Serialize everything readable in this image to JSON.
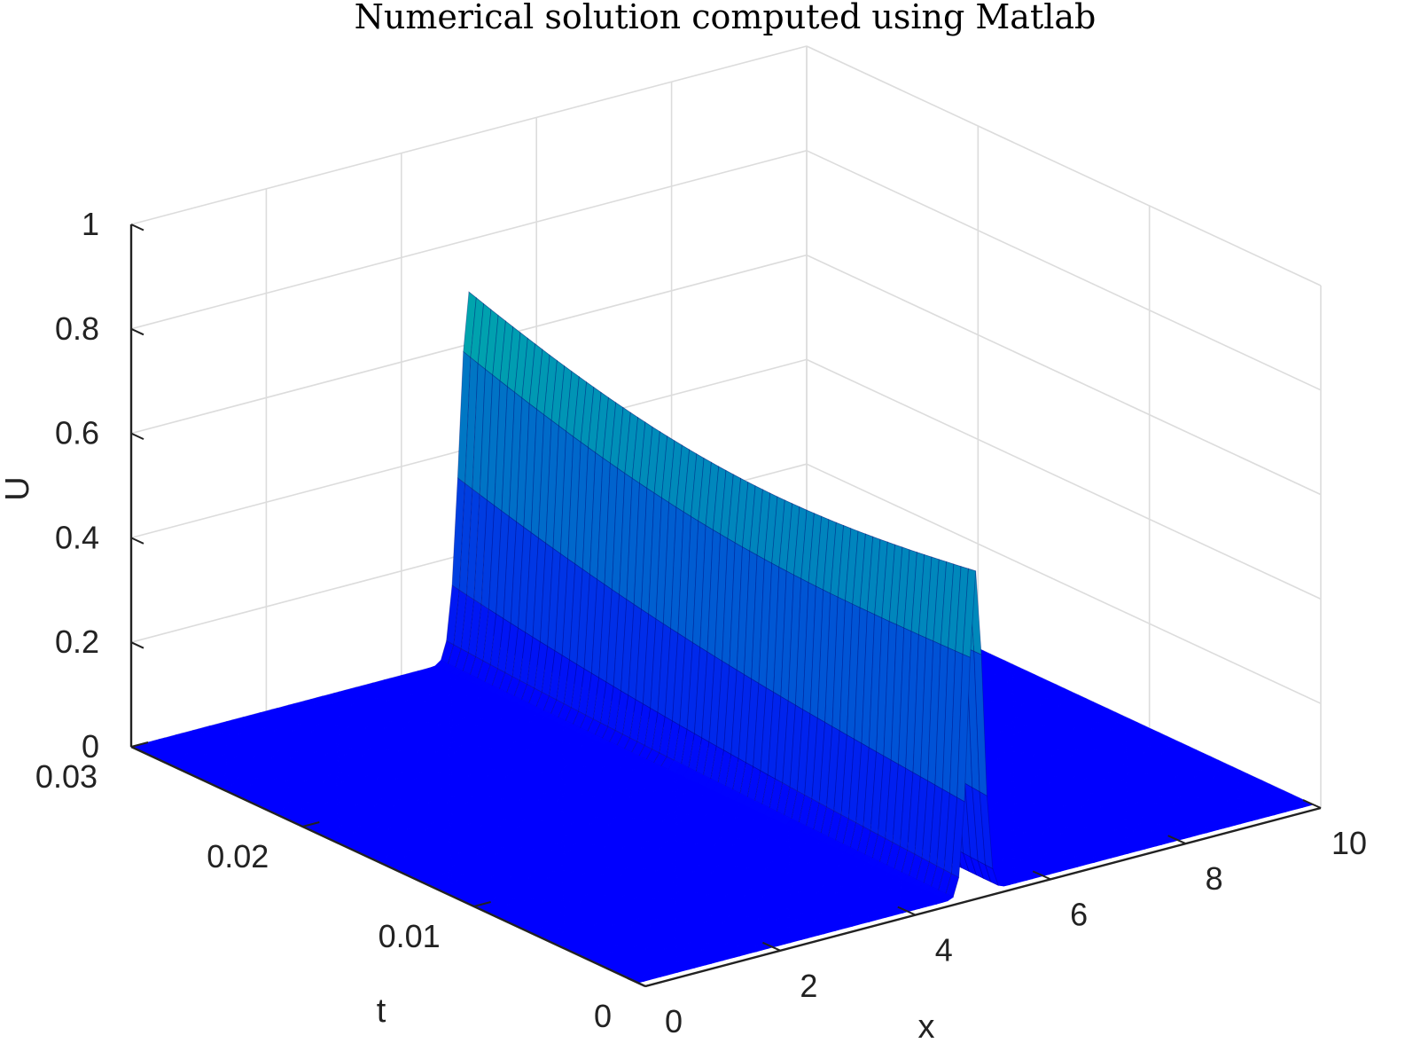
{
  "chart_data": {
    "type": "surface",
    "title": "Numerical solution computed using Matlab",
    "xlabel": "x",
    "ylabel": "t",
    "zlabel": "U",
    "xlim": [
      0,
      10
    ],
    "ylim": [
      0,
      0.03
    ],
    "zlim": [
      0,
      1
    ],
    "xticks": [
      "0",
      "2",
      "4",
      "6",
      "8",
      "10"
    ],
    "yticks": [
      "0",
      "0.01",
      "0.02",
      "0.03"
    ],
    "zticks": [
      "0",
      "0.2",
      "0.4",
      "0.6",
      "0.8",
      "1"
    ],
    "grid": true,
    "colormap": "winter",
    "colors": {
      "low": "#0000ff",
      "high": "#00ff80"
    },
    "pulse_center_x": 5,
    "pulse_peak_at_t0": 0.62,
    "pulse_peak_at_t003": 0.7,
    "pulse_width_at_t0": 0.15,
    "pulse_width_at_t003": 0.2
  }
}
